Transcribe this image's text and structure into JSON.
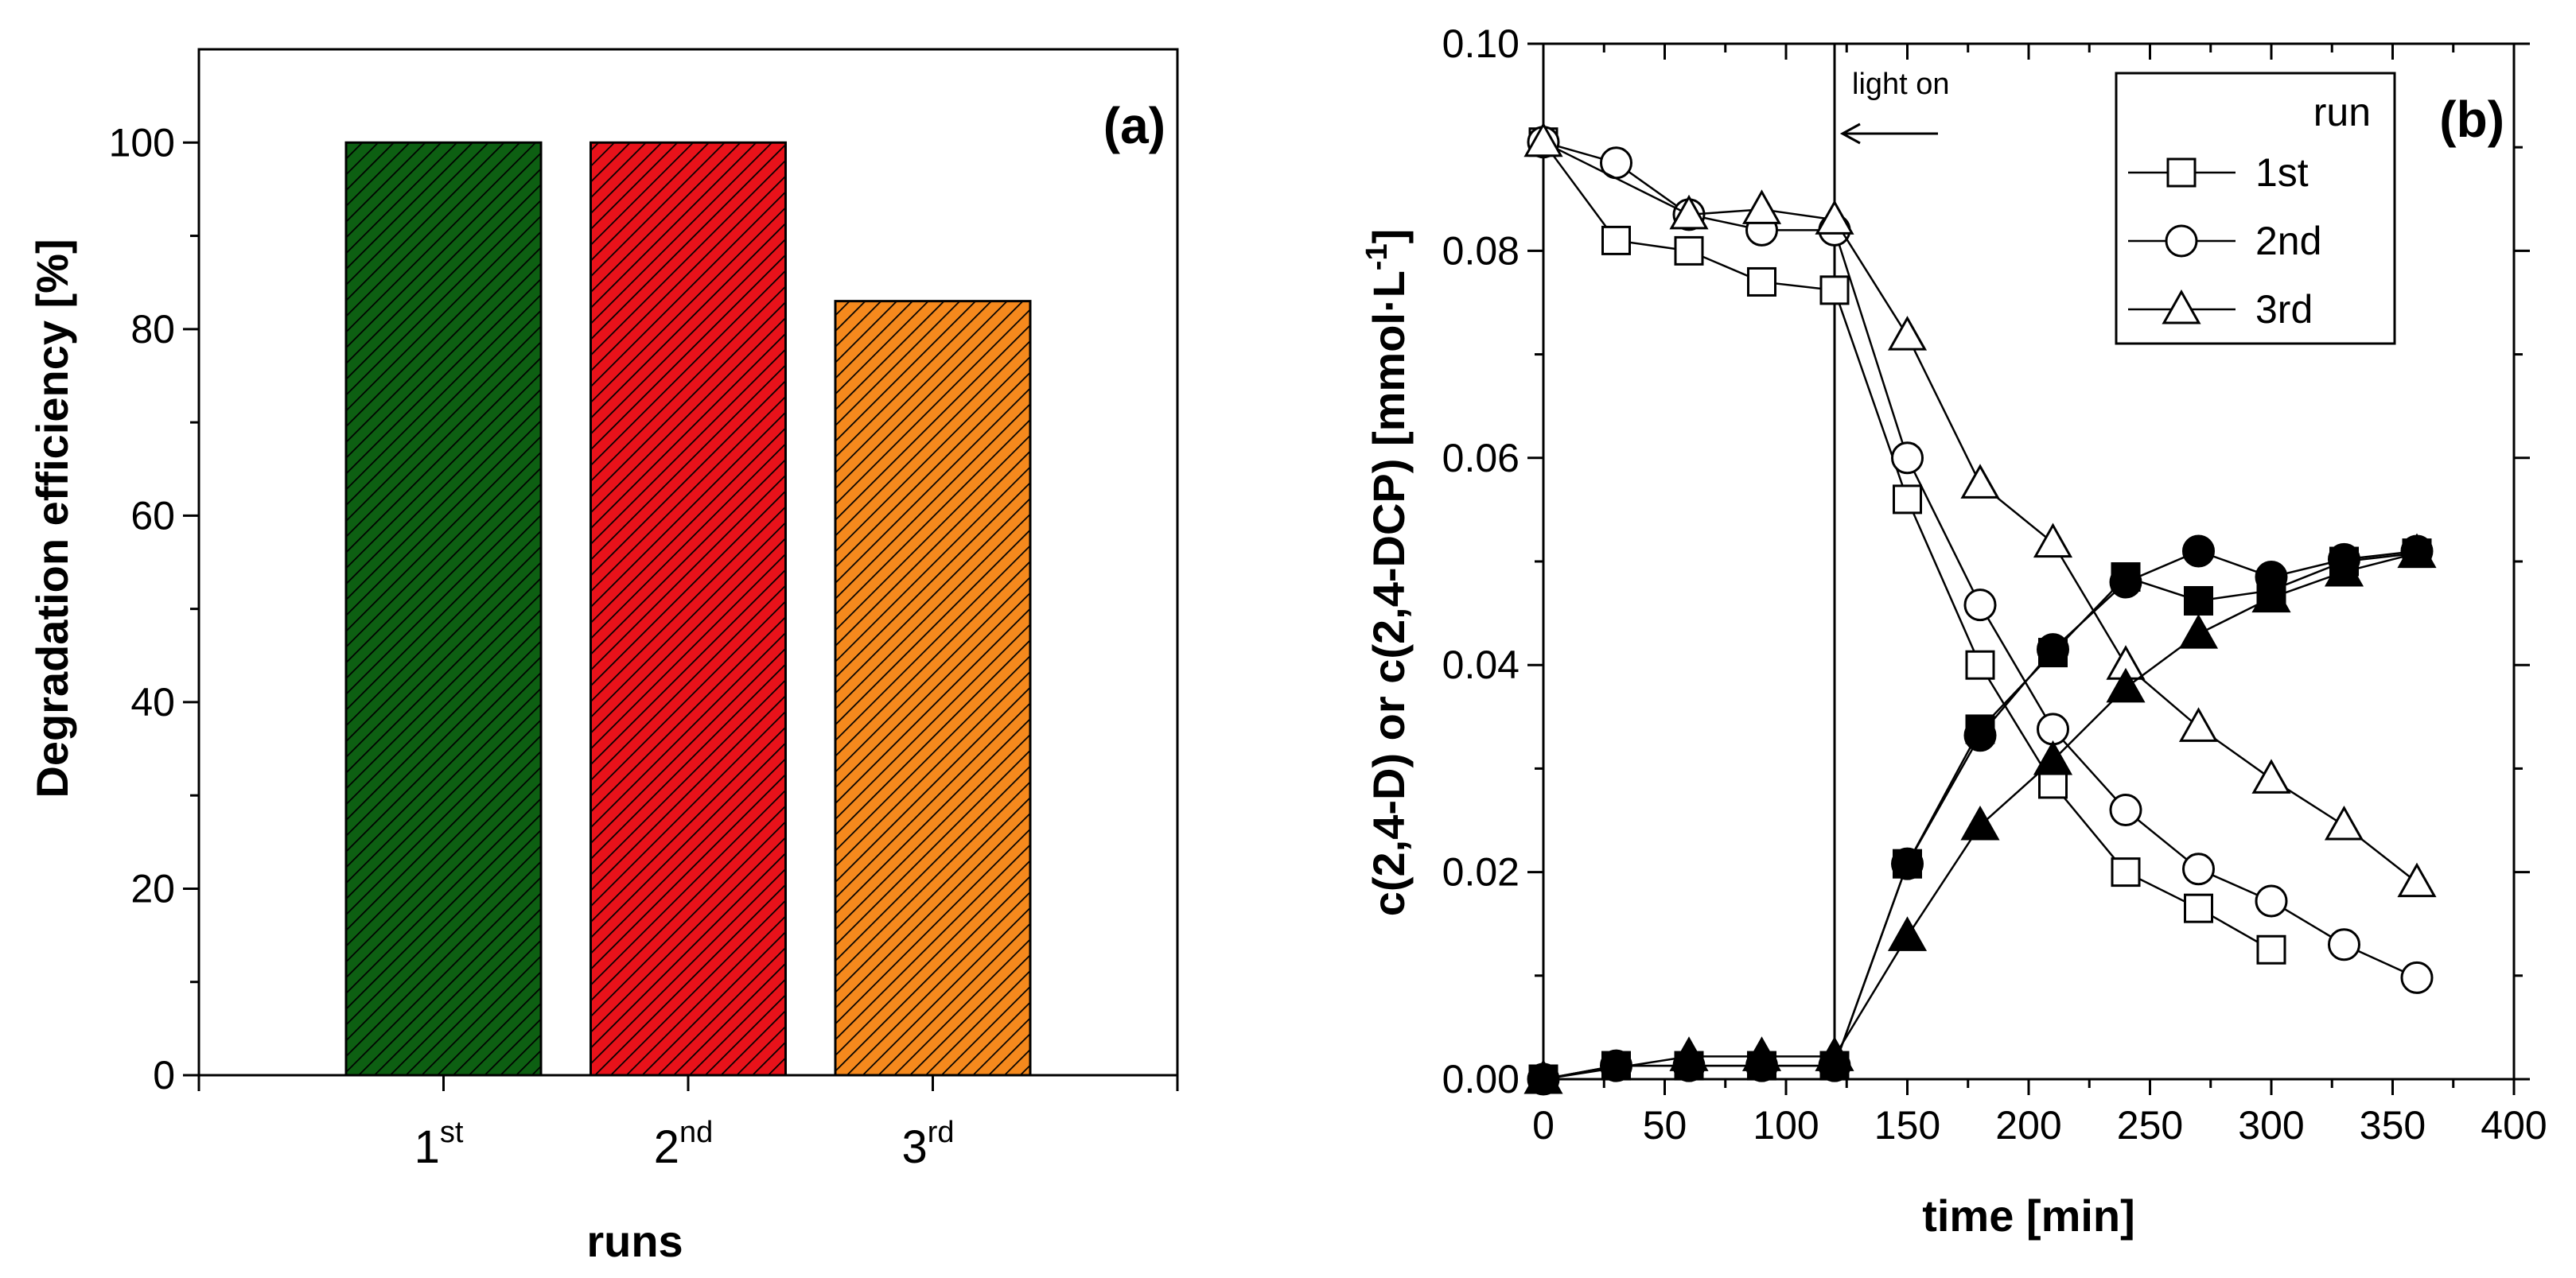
{
  "chart_data": [
    {
      "panel": "(a)",
      "type": "bar",
      "categories": [
        {
          "base": "1",
          "sup": "st"
        },
        {
          "base": "2",
          "sup": "nd"
        },
        {
          "base": "3",
          "sup": "rd"
        }
      ],
      "values": [
        100,
        100,
        83
      ],
      "colors": [
        "#0d5f12",
        "#e8121a",
        "#f5891d"
      ],
      "xlabel": "runs",
      "ylabel": "Degradation efficiency [%]",
      "ylim": [
        0,
        110
      ],
      "yticks": [
        "0",
        "20",
        "40",
        "60",
        "80",
        "100"
      ],
      "grid": false
    },
    {
      "panel": "(b)",
      "type": "line",
      "xlabel": "time [min]",
      "ylabel": "c(2,4-D) or c(2,4-DCP) [mmol·L⁻¹]",
      "ylabel_parts": {
        "main": "c(2,4-D) or c(2,4-DCP) [mmol·L",
        "sup": "-1",
        "end": "]"
      },
      "xlim": [
        0,
        400
      ],
      "ylim": [
        0,
        0.1
      ],
      "xticks": [
        "0",
        "50",
        "100",
        "150",
        "200",
        "250",
        "300",
        "350",
        "400"
      ],
      "yticks": [
        "0.00",
        "0.02",
        "0.04",
        "0.06",
        "0.08",
        "0.10"
      ],
      "annotation": {
        "text": "light on",
        "x": 120
      },
      "legend": {
        "title": "run",
        "position": "top-right",
        "entries": [
          "1st",
          "2nd",
          "3rd"
        ]
      },
      "series": [
        {
          "name": "1st",
          "species": "2,4-D",
          "marker": "square",
          "filled": false,
          "x": [
            0,
            30,
            60,
            90,
            120,
            150,
            180,
            210,
            240,
            270,
            300
          ],
          "y": [
            0.0905,
            0.081,
            0.08,
            0.077,
            0.0762,
            0.056,
            0.04,
            0.0285,
            0.02,
            0.0165,
            0.0125
          ]
        },
        {
          "name": "2nd",
          "species": "2,4-D",
          "marker": "circle",
          "filled": false,
          "x": [
            0,
            30,
            60,
            90,
            120,
            150,
            180,
            210,
            240,
            270,
            300,
            330,
            360
          ],
          "y": [
            0.0905,
            0.0885,
            0.0835,
            0.082,
            0.082,
            0.06,
            0.0458,
            0.0338,
            0.026,
            0.0203,
            0.0172,
            0.013,
            0.0098
          ]
        },
        {
          "name": "3rd",
          "species": "2,4-D",
          "marker": "triangle",
          "filled": false,
          "x": [
            0,
            60,
            90,
            120,
            150,
            180,
            210,
            240,
            270,
            300,
            330,
            360
          ],
          "y": [
            0.0905,
            0.0835,
            0.084,
            0.083,
            0.0718,
            0.0575,
            0.0518,
            0.04,
            0.034,
            0.029,
            0.0245,
            0.019
          ]
        },
        {
          "name": "1st",
          "species": "2,4-DCP",
          "marker": "square",
          "filled": true,
          "x": [
            0,
            30,
            60,
            90,
            120,
            150,
            180,
            210,
            240,
            270,
            300,
            330,
            360
          ],
          "y": [
            0.0,
            0.0013,
            0.0013,
            0.0013,
            0.0013,
            0.0208,
            0.0338,
            0.0412,
            0.0485,
            0.0462,
            0.0472,
            0.05,
            0.0508
          ]
        },
        {
          "name": "2nd",
          "species": "2,4-DCP",
          "marker": "circle",
          "filled": true,
          "x": [
            0,
            30,
            60,
            90,
            120,
            150,
            180,
            210,
            240,
            270,
            300,
            330,
            360
          ],
          "y": [
            0.0,
            0.0013,
            0.0013,
            0.0013,
            0.0013,
            0.0208,
            0.0332,
            0.0415,
            0.048,
            0.051,
            0.0485,
            0.0502,
            0.051
          ]
        },
        {
          "name": "3rd",
          "species": "2,4-DCP",
          "marker": "triangle",
          "filled": true,
          "x": [
            0,
            60,
            90,
            120,
            150,
            180,
            210,
            240,
            270,
            300,
            330,
            360
          ],
          "y": [
            0.0,
            0.0022,
            0.0022,
            0.0022,
            0.0138,
            0.0245,
            0.0308,
            0.0378,
            0.043,
            0.0465,
            0.049,
            0.0508
          ]
        }
      ]
    }
  ]
}
